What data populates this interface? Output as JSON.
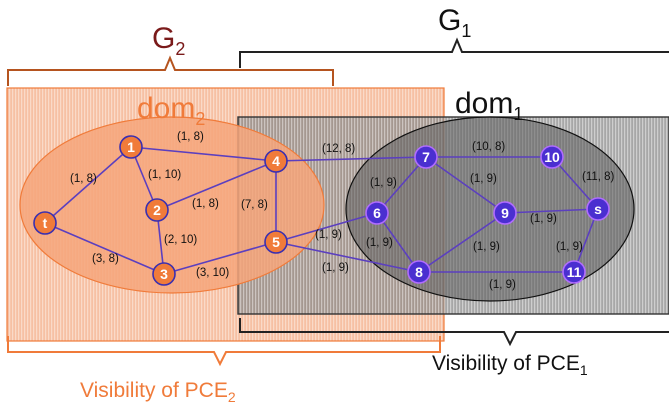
{
  "colors": {
    "g2_accent": "#7a1a1a",
    "dom2_accent": "#f07b3a",
    "node_orange": "#f07b3a",
    "node_blue": "#4a2fd0",
    "edge": "#5b3fbf"
  },
  "diagram": {
    "g2_base": "G",
    "g2_sub": "2",
    "g1_base": "G",
    "g1_sub": "1",
    "dom2_base": "dom",
    "dom2_sub": "2",
    "dom1_base": "dom",
    "dom1_sub": "1",
    "vis_pce2_base": "Visibility of PCE",
    "vis_pce2_sub": "2",
    "vis_pce1_base": "Visibility of PCE",
    "vis_pce1_sub": "1"
  },
  "nodes": [
    {
      "id": "t",
      "label": "t",
      "color": "orange"
    },
    {
      "id": "n1",
      "label": "1",
      "color": "orange"
    },
    {
      "id": "n2",
      "label": "2",
      "color": "orange"
    },
    {
      "id": "n3",
      "label": "3",
      "color": "orange"
    },
    {
      "id": "n4",
      "label": "4",
      "color": "orange"
    },
    {
      "id": "n5",
      "label": "5",
      "color": "orange"
    },
    {
      "id": "n6",
      "label": "6",
      "color": "blue"
    },
    {
      "id": "n7",
      "label": "7",
      "color": "blue"
    },
    {
      "id": "n8",
      "label": "8",
      "color": "blue"
    },
    {
      "id": "n9",
      "label": "9",
      "color": "blue"
    },
    {
      "id": "n10",
      "label": "10",
      "color": "blue"
    },
    {
      "id": "n11",
      "label": "11",
      "color": "blue"
    },
    {
      "id": "s",
      "label": "s",
      "color": "blue"
    }
  ],
  "edges": [
    {
      "from": "t",
      "to": "n1",
      "label": "(1, 8)"
    },
    {
      "from": "t",
      "to": "n3",
      "label": "(3, 8)"
    },
    {
      "from": "n1",
      "to": "n4",
      "label": "(1, 8)"
    },
    {
      "from": "n1",
      "to": "n2",
      "label": "(1, 10)"
    },
    {
      "from": "n2",
      "to": "n4",
      "label": "(1, 8)"
    },
    {
      "from": "n2",
      "to": "n3",
      "label": "(2, 10)"
    },
    {
      "from": "n3",
      "to": "n5",
      "label": "(3, 10)"
    },
    {
      "from": "n4",
      "to": "n5",
      "label": "(7, 8)"
    },
    {
      "from": "n4",
      "to": "n7",
      "label": "(12, 8)"
    },
    {
      "from": "n5",
      "to": "n6",
      "label": "(1, 9)"
    },
    {
      "from": "n5",
      "to": "n8",
      "label": "(1, 9)"
    },
    {
      "from": "n7",
      "to": "n6",
      "label": "(1, 9)"
    },
    {
      "from": "n6",
      "to": "n8",
      "label": "(1, 9)"
    },
    {
      "from": "n7",
      "to": "n9",
      "label": "(1, 9)"
    },
    {
      "from": "n7",
      "to": "n10",
      "label": "(10, 8)"
    },
    {
      "from": "n9",
      "to": "n8",
      "label": "(1, 9)"
    },
    {
      "from": "n9",
      "to": "s",
      "label": "(1, 9)"
    },
    {
      "from": "n10",
      "to": "s",
      "label": "(11, 8)"
    },
    {
      "from": "s",
      "to": "n11",
      "label": "(1, 9)"
    },
    {
      "from": "n8",
      "to": "n11",
      "label": "(1, 9)"
    }
  ]
}
